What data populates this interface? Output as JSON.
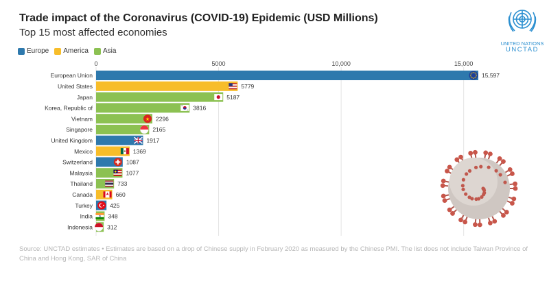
{
  "title": "Trade impact of the Coronavirus (COVID-19) Epidemic (USD Millions)",
  "subtitle": "Top 15 most affected economies",
  "legend": [
    {
      "label": "Europe",
      "color": "#2e79ad"
    },
    {
      "label": "America",
      "color": "#f7bd2a"
    },
    {
      "label": "Asia",
      "color": "#8cc152"
    }
  ],
  "logo": {
    "line1": "UNITED NATIONS",
    "line2": "UNCTAD"
  },
  "source": "Source: UNCTAD estimates • Estimates are based on a drop of Chinese supply in February 2020 as measured by the Chinese PMI. The list does not include Taiwan Province of China and Hong Kong, SAR of China",
  "chart_data": {
    "type": "bar",
    "orientation": "horizontal",
    "xlim": [
      0,
      15597
    ],
    "x_ticks": [
      0,
      5000,
      10000,
      15000
    ],
    "x_tick_labels": [
      "0",
      "5000",
      "10,000",
      "15,000"
    ],
    "grid": true,
    "legend_position": "top-left",
    "categories": [
      "European Union",
      "United States",
      "Japan",
      "Korea, Republic of",
      "Vietnam",
      "Singapore",
      "United Kingdom",
      "Mexico",
      "Switzerland",
      "Malaysia",
      "Thailand",
      "Canada",
      "Turkey",
      "India",
      "Indonesia"
    ],
    "values": [
      15597,
      5779,
      5187,
      3816,
      2296,
      2165,
      1917,
      1369,
      1087,
      1077,
      733,
      660,
      425,
      348,
      312
    ],
    "value_labels": [
      "15,597",
      "5779",
      "5187",
      "3816",
      "2296",
      "2165",
      "1917",
      "1369",
      "1087",
      "1077",
      "733",
      "660",
      "425",
      "348",
      "312"
    ],
    "region": [
      "Europe",
      "America",
      "Asia",
      "Asia",
      "Asia",
      "Asia",
      "Europe",
      "America",
      "Europe",
      "Asia",
      "Asia",
      "America",
      "Europe",
      "Asia",
      "Asia"
    ],
    "flag_icons": [
      "eu-flag-icon",
      "us-flag-icon",
      "japan-flag-icon",
      "korea-flag-icon",
      "vietnam-flag-icon",
      "singapore-flag-icon",
      "uk-flag-icon",
      "mexico-flag-icon",
      "switzerland-flag-icon",
      "malaysia-flag-icon",
      "thailand-flag-icon",
      "canada-flag-icon",
      "turkey-flag-icon",
      "india-flag-icon",
      "indonesia-flag-icon"
    ]
  }
}
